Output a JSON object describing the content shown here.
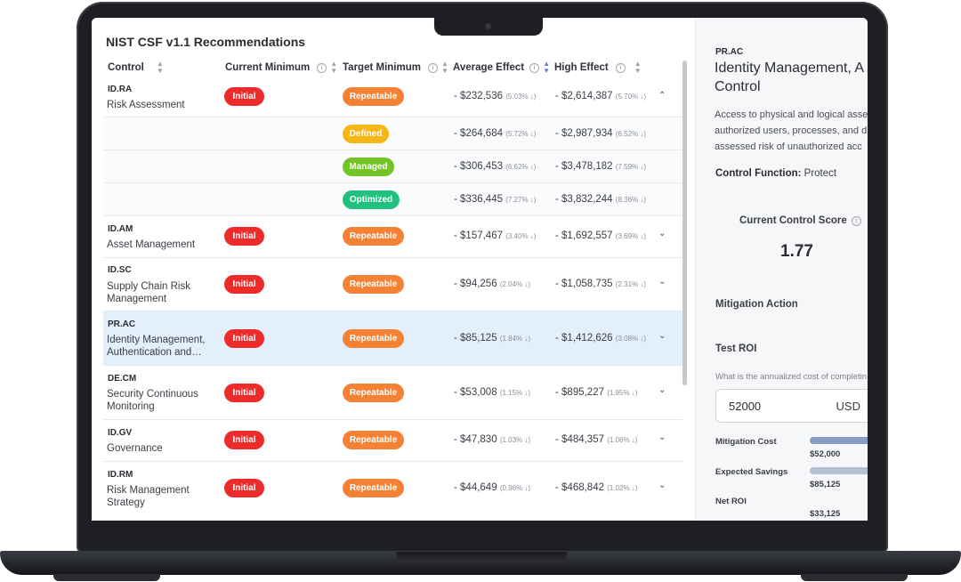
{
  "title": "NIST CSF v1.1 Recommendations",
  "columns": {
    "control": "Control",
    "current_minimum": "Current Minimum",
    "target_minimum": "Target Minimum",
    "average_effect": "Average Effect",
    "high_effect": "High Effect"
  },
  "icons": {
    "sort": "sort-icon",
    "info": "info-icon",
    "chevron_up": "chevron-up-icon",
    "chevron_down": "chevron-down-icon"
  },
  "rows": [
    {
      "code": "ID.RA",
      "name": "Risk Assessment",
      "current": "Initial",
      "target": "Repeatable",
      "avg": "- $232,536",
      "avg_pct": "(5.03% ↓)",
      "high": "- $2,614,387",
      "high_pct": "(5.70% ↓)",
      "expanded": true
    },
    {
      "sub": true,
      "target": "Defined",
      "avg": "- $264,684",
      "avg_pct": "(5.72% ↓)",
      "high": "- $2,987,934",
      "high_pct": "(6.52% ↓)"
    },
    {
      "sub": true,
      "target": "Managed",
      "avg": "- $306,453",
      "avg_pct": "(6.62% ↓)",
      "high": "- $3,478,182",
      "high_pct": "(7.59% ↓)"
    },
    {
      "sub": true,
      "target": "Optimized",
      "avg": "- $336,445",
      "avg_pct": "(7.27% ↓)",
      "high": "- $3,832,244",
      "high_pct": "(8.36% ↓)"
    },
    {
      "code": "ID.AM",
      "name": "Asset Management",
      "current": "Initial",
      "target": "Repeatable",
      "avg": "- $157,467",
      "avg_pct": "(3.40% ↓)",
      "high": "- $1,692,557",
      "high_pct": "(3.69% ↓)"
    },
    {
      "code": "ID.SC",
      "name": "Supply Chain Risk Management",
      "current": "Initial",
      "target": "Repeatable",
      "avg": "- $94,256",
      "avg_pct": "(2.04% ↓)",
      "high": "- $1,058,735",
      "high_pct": "(2.31% ↓)"
    },
    {
      "code": "PR.AC",
      "name": "Identity Management, Authentication and…",
      "current": "Initial",
      "target": "Repeatable",
      "avg": "- $85,125",
      "avg_pct": "(1.84% ↓)",
      "high": "- $1,412,626",
      "high_pct": "(3.08% ↓)",
      "selected": true
    },
    {
      "code": "DE.CM",
      "name": "Security Continuous Monitoring",
      "current": "Initial",
      "target": "Repeatable",
      "avg": "- $53,008",
      "avg_pct": "(1.15% ↓)",
      "high": "- $895,227",
      "high_pct": "(1.95% ↓)"
    },
    {
      "code": "ID.GV",
      "name": "Governance",
      "current": "Initial",
      "target": "Repeatable",
      "avg": "- $47,830",
      "avg_pct": "(1.03% ↓)",
      "high": "- $484,357",
      "high_pct": "(1.06% ↓)"
    },
    {
      "code": "ID.RM",
      "name": "Risk Management Strategy",
      "current": "Initial",
      "target": "Repeatable",
      "avg": "- $44,649",
      "avg_pct": "(0.96% ↓)",
      "high": "- $468,842",
      "high_pct": "(1.02% ↓)"
    }
  ],
  "side": {
    "code": "PR.AC",
    "title_line1": "Identity Management, A",
    "title_line2": "Control",
    "desc_line1": "Access to physical and logical asse",
    "desc_line2": "authorized users, processes, and d",
    "desc_line3": "assessed risk of unauthorized acc",
    "function_label": "Control Function:",
    "function_value": "Protect",
    "score_label": "Current Control Score",
    "score_value": "1.77",
    "mitigation_label": "Mitigation Action",
    "roi_label": "Test ROI",
    "roi_question": "What is the annualized cost of completin",
    "cost_value": "52000",
    "cost_unit": "USD",
    "metrics": [
      {
        "label": "Mitigation Cost",
        "value": "$52,000",
        "color": "#8a9bc4"
      },
      {
        "label": "Expected Savings",
        "value": "$85,125",
        "color": "#b4c1d2"
      },
      {
        "label": "Net ROI",
        "value": "$33,125",
        "color": "#8a9bc4"
      }
    ]
  }
}
